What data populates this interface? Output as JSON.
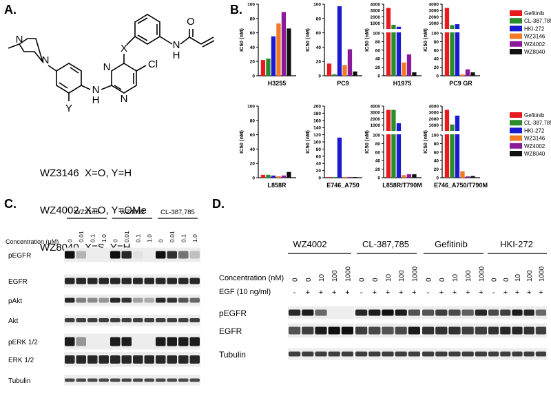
{
  "panels": {
    "A": "A.",
    "B": "B.",
    "C": "C.",
    "D": "D."
  },
  "colors": {
    "Gefitinib": "#e8191f",
    "CL-387,785": "#2a8c2a",
    "HKI-272": "#1a1ad0",
    "WZ3146": "#f07a25",
    "WZ4002": "#8b1a9a",
    "WZ8040": "#111111"
  },
  "panel_a": {
    "atoms": {
      "O": "O",
      "NH_amide": "N",
      "H_amide": "H",
      "X": "X",
      "Cl": "Cl",
      "N_top": "N",
      "N_bottom": "N",
      "N_pip1": "N",
      "N_pip2": "N",
      "Y": "Y",
      "NH_link": "N",
      "H_link": "H"
    },
    "compounds": [
      "WZ3146  X=O, Y=H",
      "WZ4002  X=O, Y=OMe",
      "WZ8040  X=S, Y=H"
    ]
  },
  "chart_data": [
    {
      "type": "bar",
      "title": "H3255",
      "ylabel": "IC50 (nM)",
      "yticks": [
        "0",
        "20",
        "40",
        "60",
        "80",
        "100"
      ],
      "ylim": [
        0,
        100
      ],
      "series": [
        {
          "name": "Gefitinib",
          "values": [
            22
          ]
        },
        {
          "name": "CL-387,785",
          "values": [
            24
          ]
        },
        {
          "name": "HKI-272",
          "values": [
            55
          ]
        },
        {
          "name": "WZ3146",
          "values": [
            73
          ]
        },
        {
          "name": "WZ4002",
          "values": [
            89
          ]
        },
        {
          "name": "WZ8040",
          "values": [
            66
          ]
        }
      ]
    },
    {
      "type": "bar",
      "title": "PC9",
      "ylabel": "IC50 (nM)",
      "yticks": [
        "0",
        "20",
        "40",
        "60",
        "80",
        "100"
      ],
      "ylim": [
        0,
        100
      ],
      "series": [
        {
          "name": "Gefitinib",
          "values": [
            17
          ]
        },
        {
          "name": "CL-387,785",
          "values": [
            2
          ]
        },
        {
          "name": "HKI-272",
          "values": [
            97
          ]
        },
        {
          "name": "WZ3146",
          "values": [
            15
          ]
        },
        {
          "name": "WZ4002",
          "values": [
            37
          ]
        },
        {
          "name": "WZ8040",
          "values": [
            6
          ]
        }
      ]
    },
    {
      "type": "bar",
      "title": "H1975",
      "ylabel": "IC50 (nM)",
      "broken_axis": true,
      "yticks_top": [
        "1000",
        "2000",
        "3000",
        "4000"
      ],
      "yticks_bottom": [
        "0",
        "20",
        "40",
        "60",
        "80",
        "100"
      ],
      "series": [
        {
          "name": "Gefitinib",
          "values": [
            3400
          ]
        },
        {
          "name": "CL-387,785",
          "values": [
            750
          ]
        },
        {
          "name": "HKI-272",
          "values": [
            450
          ]
        },
        {
          "name": "WZ3146",
          "values": [
            31
          ]
        },
        {
          "name": "WZ4002",
          "values": [
            50
          ]
        },
        {
          "name": "WZ8040",
          "values": [
            8
          ]
        }
      ]
    },
    {
      "type": "bar",
      "title": "PC9 GR",
      "ylabel": "IC50 (nM)",
      "broken_axis": true,
      "yticks_top": [
        "1000",
        "2000",
        "3000",
        "4000"
      ],
      "yticks_bottom": [
        "0",
        "20",
        "40",
        "60",
        "80",
        "100"
      ],
      "series": [
        {
          "name": "Gefitinib",
          "values": [
            3400
          ]
        },
        {
          "name": "CL-387,785",
          "values": [
            700
          ]
        },
        {
          "name": "HKI-272",
          "values": [
            850
          ]
        },
        {
          "name": "WZ3146",
          "values": [
            3
          ]
        },
        {
          "name": "WZ4002",
          "values": [
            15
          ]
        },
        {
          "name": "WZ8040",
          "values": [
            8
          ]
        }
      ]
    },
    {
      "type": "bar",
      "title": "L858R",
      "ylabel": "IC50 (nM)",
      "yticks": [
        "0",
        "20",
        "40",
        "60",
        "80",
        "100"
      ],
      "ylim": [
        0,
        100
      ],
      "series": [
        {
          "name": "Gefitinib",
          "values": [
            4
          ]
        },
        {
          "name": "CL-387,785",
          "values": [
            4
          ]
        },
        {
          "name": "HKI-272",
          "values": [
            3
          ]
        },
        {
          "name": "WZ3146",
          "values": [
            2
          ]
        },
        {
          "name": "WZ4002",
          "values": [
            3
          ]
        },
        {
          "name": "WZ8040",
          "values": [
            8
          ]
        }
      ]
    },
    {
      "type": "bar",
      "title": "E746_A750",
      "ylabel": "IC50 (nM)",
      "yticks": [
        "0",
        "20",
        "40",
        "60",
        "80",
        "100",
        "120",
        "140",
        "160",
        "180",
        "200"
      ],
      "ylim": [
        0,
        200
      ],
      "series": [
        {
          "name": "Gefitinib",
          "values": [
            2
          ]
        },
        {
          "name": "CL-387,785",
          "values": [
            2
          ]
        },
        {
          "name": "HKI-272",
          "values": [
            112
          ]
        },
        {
          "name": "WZ3146",
          "values": [
            2
          ]
        },
        {
          "name": "WZ4002",
          "values": [
            2
          ]
        },
        {
          "name": "WZ8040",
          "values": [
            2
          ]
        }
      ]
    },
    {
      "type": "bar",
      "title": "L858R/T790M",
      "ylabel": "IC50 (nM)",
      "broken_axis": true,
      "yticks_top": [
        "1000",
        "2000",
        "3000",
        "4000"
      ],
      "yticks_bottom": [
        "0",
        "20",
        "40",
        "60",
        "80",
        "100"
      ],
      "series": [
        {
          "name": "Gefitinib",
          "values": [
            3400
          ]
        },
        {
          "name": "CL-387,785",
          "values": [
            3400
          ]
        },
        {
          "name": "HKI-272",
          "values": [
            1300
          ]
        },
        {
          "name": "WZ3146",
          "values": [
            6
          ]
        },
        {
          "name": "WZ4002",
          "values": [
            8
          ]
        },
        {
          "name": "WZ8040",
          "values": [
            8
          ]
        }
      ]
    },
    {
      "type": "bar",
      "title": "E746_A750/T790M",
      "ylabel": "IC50 (nM)",
      "broken_axis": true,
      "yticks_top": [
        "1000",
        "2000",
        "3000",
        "4000"
      ],
      "yticks_bottom": [
        "0",
        "20",
        "40",
        "60",
        "80",
        "100"
      ],
      "series": [
        {
          "name": "Gefitinib",
          "values": [
            3400
          ]
        },
        {
          "name": "CL-387,785",
          "values": [
            1100
          ]
        },
        {
          "name": "HKI-272",
          "values": [
            2500
          ]
        },
        {
          "name": "WZ3146",
          "values": [
            15
          ]
        },
        {
          "name": "WZ4002",
          "values": [
            3
          ]
        },
        {
          "name": "WZ8040",
          "values": [
            4
          ]
        }
      ]
    }
  ],
  "legend": [
    "Gefitinib",
    "CL-387,785",
    "HKI-272",
    "WZ3146",
    "WZ4002",
    "WZ8040"
  ],
  "panel_c": {
    "groups": [
      "WZ3146",
      "WZ4002",
      "CL-387,785"
    ],
    "conc_label": "Concentration (μM)",
    "concentrations": [
      "0",
      "0.01",
      "0.1",
      "1.0"
    ],
    "rows": [
      "pEGFR",
      "EGFR",
      "pAkt",
      "Akt",
      "pERK 1/2",
      "ERK 1/2",
      "Tubulin"
    ]
  },
  "panel_d": {
    "groups": [
      "WZ4002",
      "CL-387,785",
      "Gefitinib",
      "HKI-272"
    ],
    "conc_label": "Concentration (nM)",
    "egf_label": "EGF (10 ng/ml)",
    "concentrations": [
      "0",
      "0",
      "10",
      "100",
      "1000"
    ],
    "egf": [
      "-",
      "+",
      "+",
      "+",
      "+"
    ],
    "rows": [
      "pEGFR",
      "EGFR",
      "Tubulin"
    ]
  }
}
